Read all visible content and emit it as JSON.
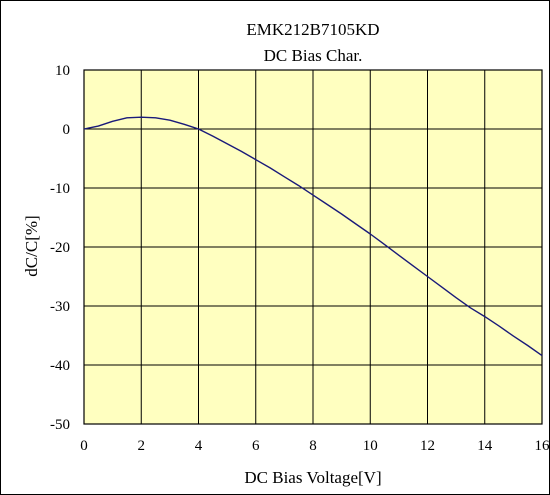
{
  "chart_data": {
    "type": "line",
    "title": "EMK212B7105KD",
    "subtitle": "DC Bias Char.",
    "xlabel": "DC Bias Voltage[V]",
    "ylabel": "dC/C[%]",
    "xlim": [
      0,
      16
    ],
    "ylim": [
      -50,
      10
    ],
    "x_ticks": [
      "0",
      "2",
      "4",
      "6",
      "8",
      "10",
      "12",
      "14",
      "16"
    ],
    "y_ticks": [
      "10",
      "0",
      "-10",
      "-20",
      "-30",
      "-40",
      "-50"
    ],
    "grid": true,
    "legend": "none",
    "colors": {
      "plot_background": "#ffffc0",
      "line": "#1a1a7a",
      "grid": "#000000"
    },
    "series": [
      {
        "values_x": [
          0,
          0.5,
          1.0,
          1.5,
          2.0,
          2.5,
          3.0,
          3.5,
          4.0,
          4.5,
          5.0,
          5.5,
          6.0,
          6.5,
          7.0,
          7.5,
          8.0,
          8.5,
          9.0,
          9.5,
          10.0,
          10.5,
          11.0,
          11.5,
          12.0,
          12.5,
          13.0,
          13.5,
          14.0,
          14.5,
          15.0,
          15.5,
          16.0
        ],
        "values_y": [
          0,
          0.5,
          1.3,
          1.9,
          2.0,
          1.9,
          1.5,
          0.8,
          0,
          -1.2,
          -2.5,
          -3.8,
          -5.2,
          -6.6,
          -8.1,
          -9.6,
          -11.2,
          -12.8,
          -14.4,
          -16.1,
          -17.8,
          -19.6,
          -21.4,
          -23.2,
          -25.0,
          -26.8,
          -28.6,
          -30.3,
          -31.8,
          -33.4,
          -35.1,
          -36.7,
          -38.4
        ]
      }
    ]
  }
}
